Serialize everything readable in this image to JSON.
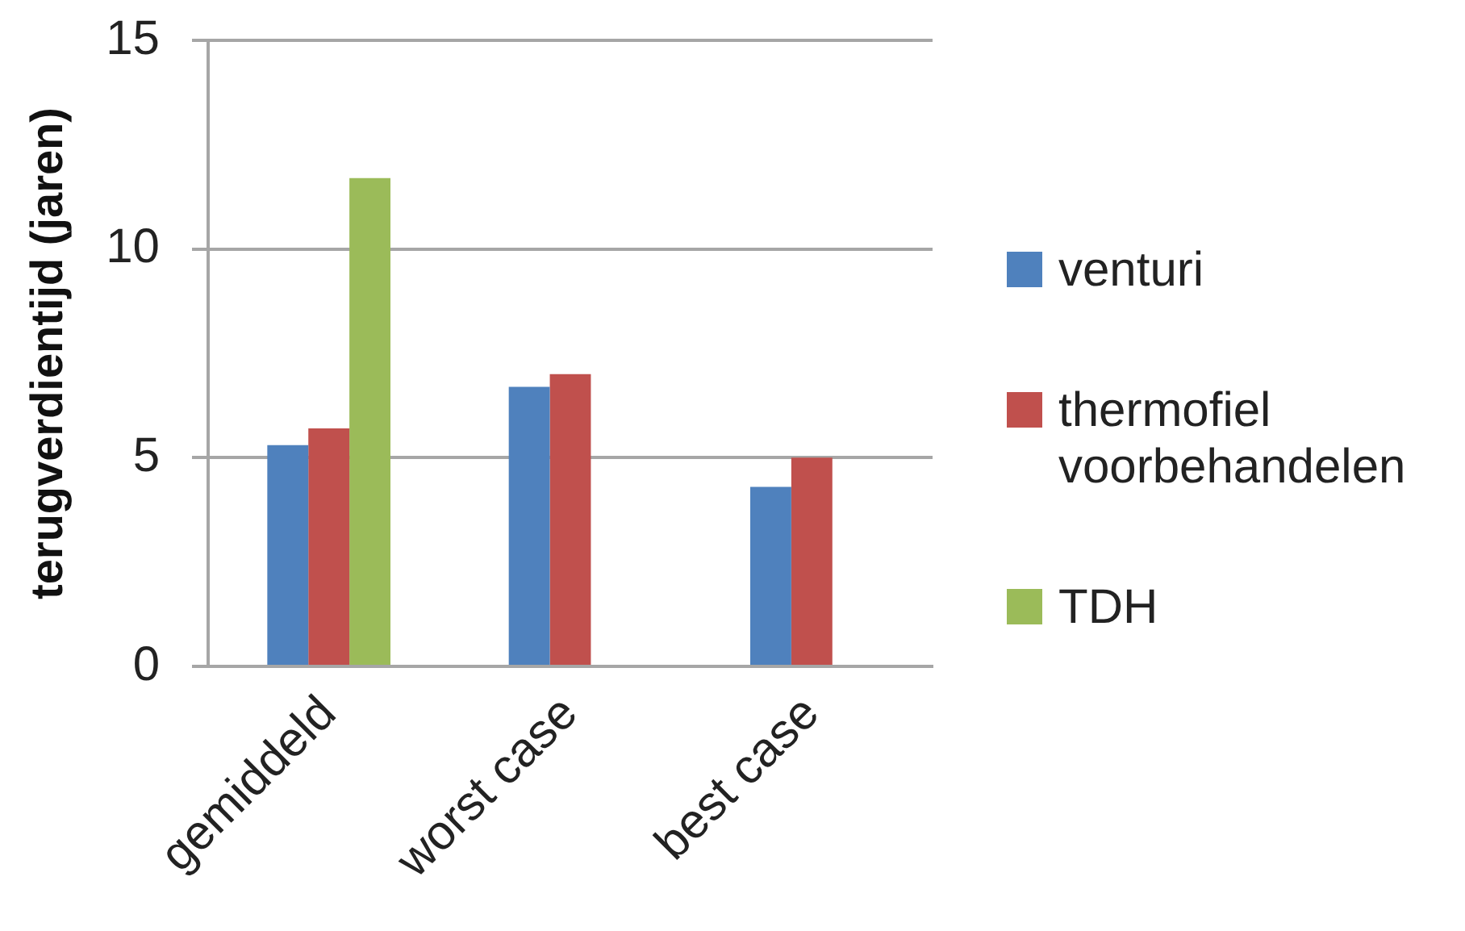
{
  "chart_data": {
    "type": "bar",
    "ylabel": "terugverdientijd (jaren)",
    "categories": [
      "gemiddeld",
      "worst case",
      "best case"
    ],
    "series": [
      {
        "name": "venturi",
        "color": "#4f81bd",
        "values": [
          5.3,
          6.7,
          4.3
        ]
      },
      {
        "name": "thermofiel voorbehandelen",
        "color": "#c0504d",
        "values": [
          5.7,
          7.0,
          5.0
        ]
      },
      {
        "name": "TDH",
        "color": "#9bbb59",
        "values": [
          11.7,
          null,
          null
        ]
      }
    ],
    "ylim": [
      0,
      15
    ],
    "yticks": [
      0,
      5,
      10,
      15
    ],
    "grid": "y",
    "legend": "right"
  }
}
